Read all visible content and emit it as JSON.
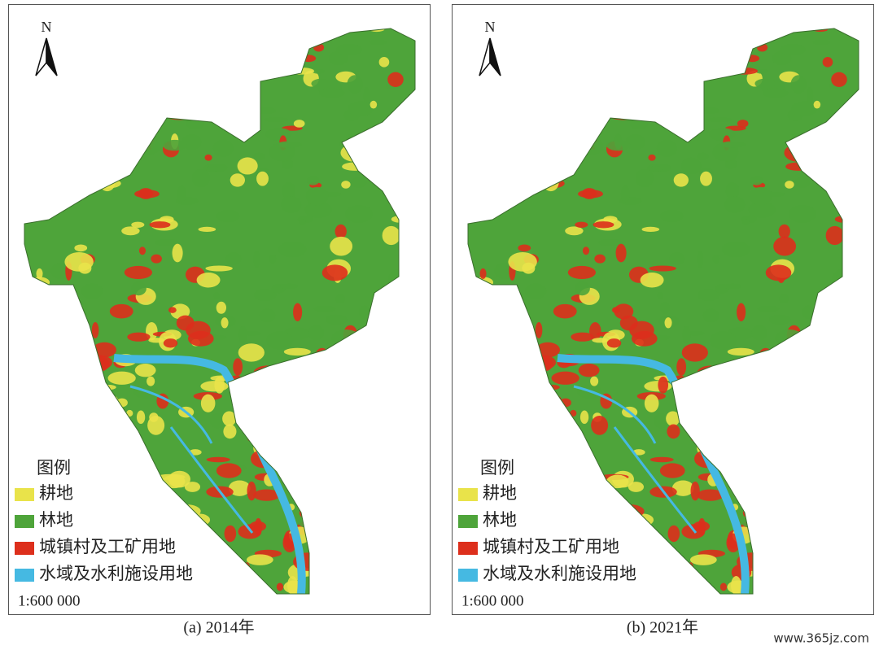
{
  "panels": [
    {
      "north": "N",
      "legend": {
        "title": "图例",
        "items": [
          "耕地",
          "林地",
          "城镇村及工矿用地",
          "水域及水利施设用地"
        ]
      },
      "scale": "1:600 000",
      "caption": "(a) 2014年"
    },
    {
      "north": "N",
      "legend": {
        "title": "图例",
        "items": [
          "耕地",
          "林地",
          "城镇村及工矿用地",
          "水域及水利施设用地"
        ]
      },
      "scale": "1:600 000",
      "caption": "(b) 2021年"
    }
  ],
  "watermark": "www.365jz.com"
}
